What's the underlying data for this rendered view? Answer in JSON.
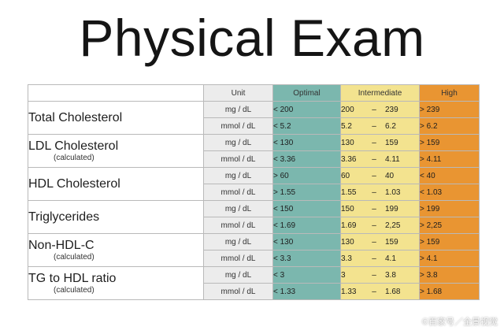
{
  "title": "Physical Exam",
  "headers": {
    "unit": "Unit",
    "optimal": "Optimal",
    "intermediate": "Intermediate",
    "high": "High"
  },
  "dash": "–",
  "tests": [
    {
      "name": "Total Cholesterol",
      "note": "",
      "rows": [
        {
          "unit": "mg / dL",
          "optimal": "< 200",
          "int_low": "200",
          "int_high": "239",
          "high": "> 239"
        },
        {
          "unit": "mmol / dL",
          "optimal": "< 5.2",
          "int_low": "5.2",
          "int_high": "6.2",
          "high": "> 6.2"
        }
      ]
    },
    {
      "name": "LDL Cholesterol",
      "note": "(calculated)",
      "rows": [
        {
          "unit": "mg / dL",
          "optimal": "< 130",
          "int_low": "130",
          "int_high": "159",
          "high": "> 159"
        },
        {
          "unit": "mmol / dL",
          "optimal": "< 3.36",
          "int_low": "3.36",
          "int_high": "4.11",
          "high": "> 4.11"
        }
      ]
    },
    {
      "name": "HDL Cholesterol",
      "note": "",
      "rows": [
        {
          "unit": "mg / dL",
          "optimal": "> 60",
          "int_low": "60",
          "int_high": "40",
          "high": "< 40"
        },
        {
          "unit": "mmol / dL",
          "optimal": "> 1.55",
          "int_low": "1.55",
          "int_high": "1.03",
          "high": "< 1.03"
        }
      ]
    },
    {
      "name": "Triglycerides",
      "note": "",
      "rows": [
        {
          "unit": "mg / dL",
          "optimal": "< 150",
          "int_low": "150",
          "int_high": "199",
          "high": "> 199"
        },
        {
          "unit": "mmol / dL",
          "optimal": "< 1.69",
          "int_low": "1.69",
          "int_high": "2,25",
          "high": "> 2,25"
        }
      ]
    },
    {
      "name": "Non-HDL-C",
      "note": "(calculated)",
      "rows": [
        {
          "unit": "mg / dL",
          "optimal": "< 130",
          "int_low": "130",
          "int_high": "159",
          "high": "> 159"
        },
        {
          "unit": "mmol / dL",
          "optimal": "< 3.3",
          "int_low": "3.3",
          "int_high": "4.1",
          "high": "> 4.1"
        }
      ]
    },
    {
      "name": "TG to HDL ratio",
      "note": "(calculated)",
      "rows": [
        {
          "unit": "mg / dL",
          "optimal": "< 3",
          "int_low": "3",
          "int_high": "3.8",
          "high": "> 3.8"
        },
        {
          "unit": "mmol / dL",
          "optimal": "< 1.33",
          "int_low": "1.33",
          "int_high": "1.68",
          "high": "> 1.68"
        }
      ]
    }
  ],
  "watermark": "©百家号／全景视觉",
  "colors": {
    "optimal": "#7bb7ae",
    "intermediate": "#f3e38f",
    "high": "#e99532",
    "unit": "#ececec"
  }
}
